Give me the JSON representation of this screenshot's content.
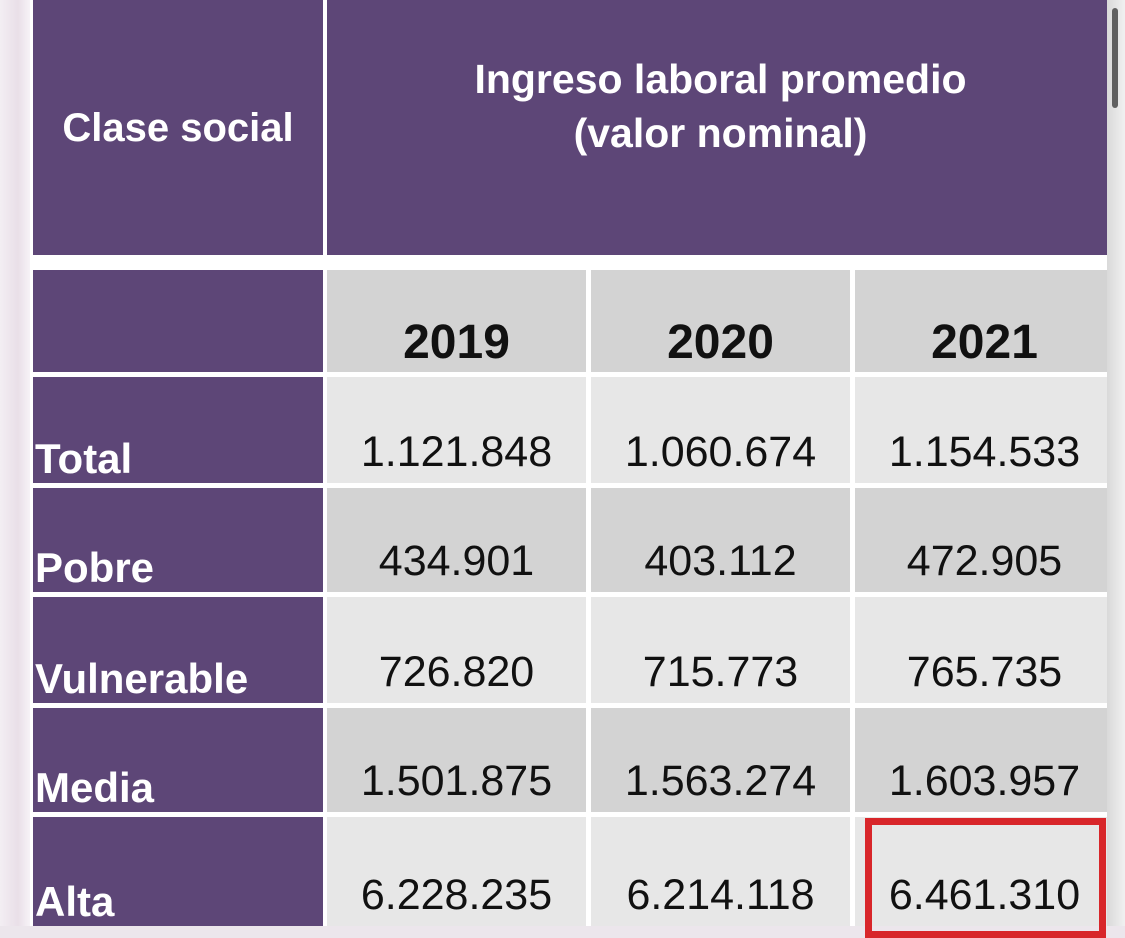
{
  "chart_data": {
    "type": "table",
    "header": {
      "row_label": "Clase social",
      "title_line1": "Ingreso laboral promedio",
      "title_line2": "(valor nominal)"
    },
    "columns": [
      "2019",
      "2020",
      "2021"
    ],
    "rows": [
      {
        "label": "Total",
        "values": [
          "1.121.848",
          "1.060.674",
          "1.154.533"
        ]
      },
      {
        "label": "Pobre",
        "values": [
          "434.901",
          "403.112",
          "472.905"
        ]
      },
      {
        "label": "Vulnerable",
        "values": [
          "726.820",
          "715.773",
          "765.735"
        ]
      },
      {
        "label": "Media",
        "values": [
          "1.501.875",
          "1.563.274",
          "1.603.957"
        ]
      },
      {
        "label": "Alta",
        "values": [
          "6.228.235",
          "6.214.118",
          "6.461.310"
        ]
      }
    ],
    "highlighted_cell": {
      "row": "Alta",
      "column": "2021"
    },
    "colors": {
      "header_purple": "#5d4677",
      "cell_light": "#e7e7e7",
      "cell_mid": "#d3d3d3",
      "highlight": "#d8262a"
    }
  }
}
